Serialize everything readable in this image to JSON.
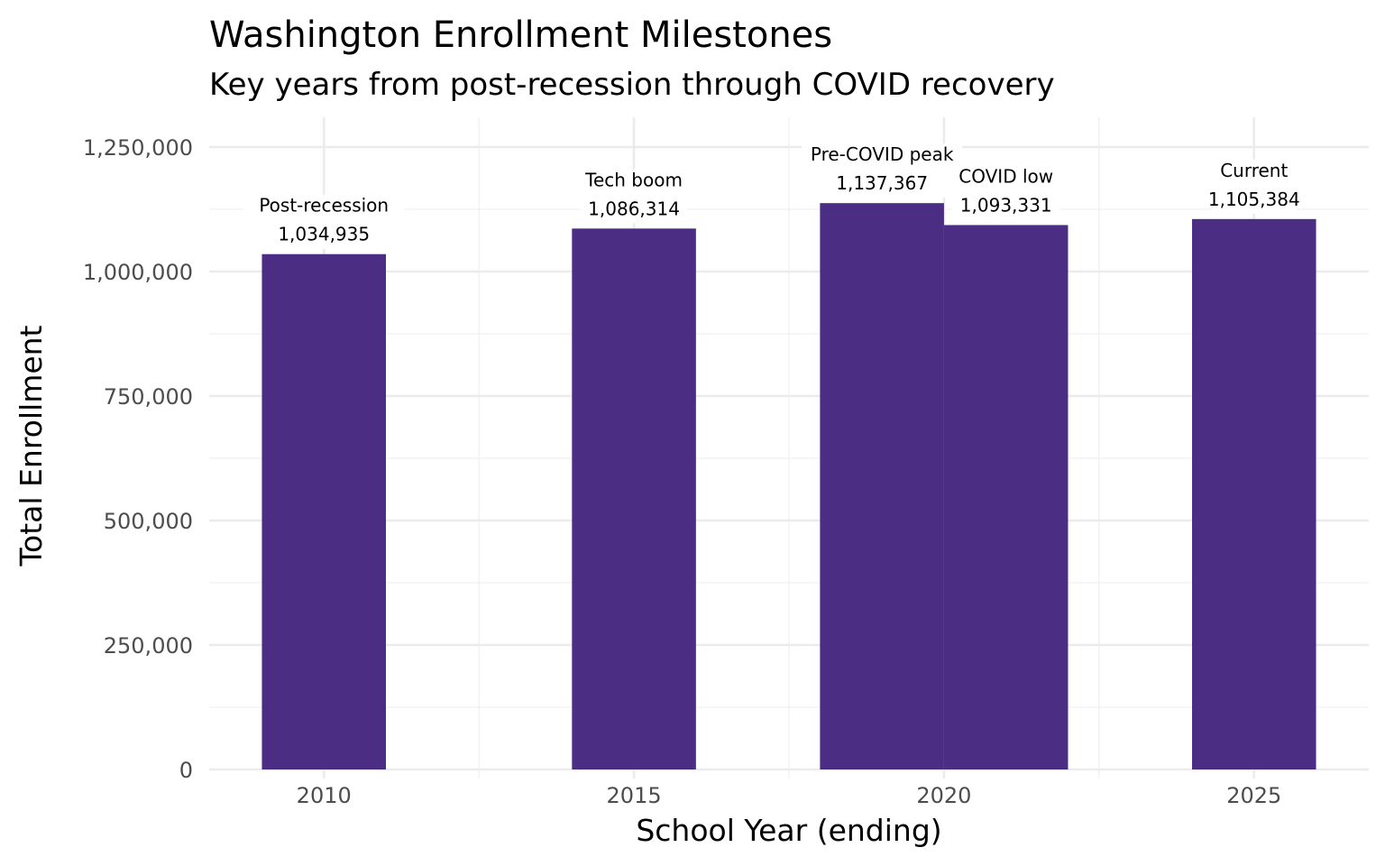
{
  "chart_data": {
    "type": "bar",
    "title": "Washington Enrollment Milestones",
    "subtitle": "Key years from post-recession through COVID recovery",
    "xlabel": "School Year (ending)",
    "ylabel": "Total Enrollment",
    "x": [
      2010,
      2015,
      2019,
      2021,
      2025
    ],
    "values": [
      1034935,
      1086314,
      1137367,
      1093331,
      1105384
    ],
    "annotations": [
      "Post-recession",
      "Tech boom",
      "Pre-COVID peak",
      "COVID low",
      "Current"
    ],
    "value_labels": [
      "1,034,935",
      "1,086,314",
      "1,137,367",
      "1,093,331",
      "1,105,384"
    ],
    "bar_color": "#4B2E83",
    "xlim": [
      2008.15,
      2026.85
    ],
    "ylim": [
      0,
      1250000
    ],
    "xticks": [
      2010,
      2015,
      2020,
      2025
    ],
    "xtick_labels": [
      "2010",
      "2015",
      "2020",
      "2025"
    ],
    "yticks": [
      0,
      250000,
      500000,
      750000,
      1000000,
      1250000
    ],
    "ytick_labels": [
      "0",
      "250,000",
      "500,000",
      "750,000",
      "1,000,000",
      "1,250,000"
    ],
    "grid": true,
    "legend": "none"
  }
}
